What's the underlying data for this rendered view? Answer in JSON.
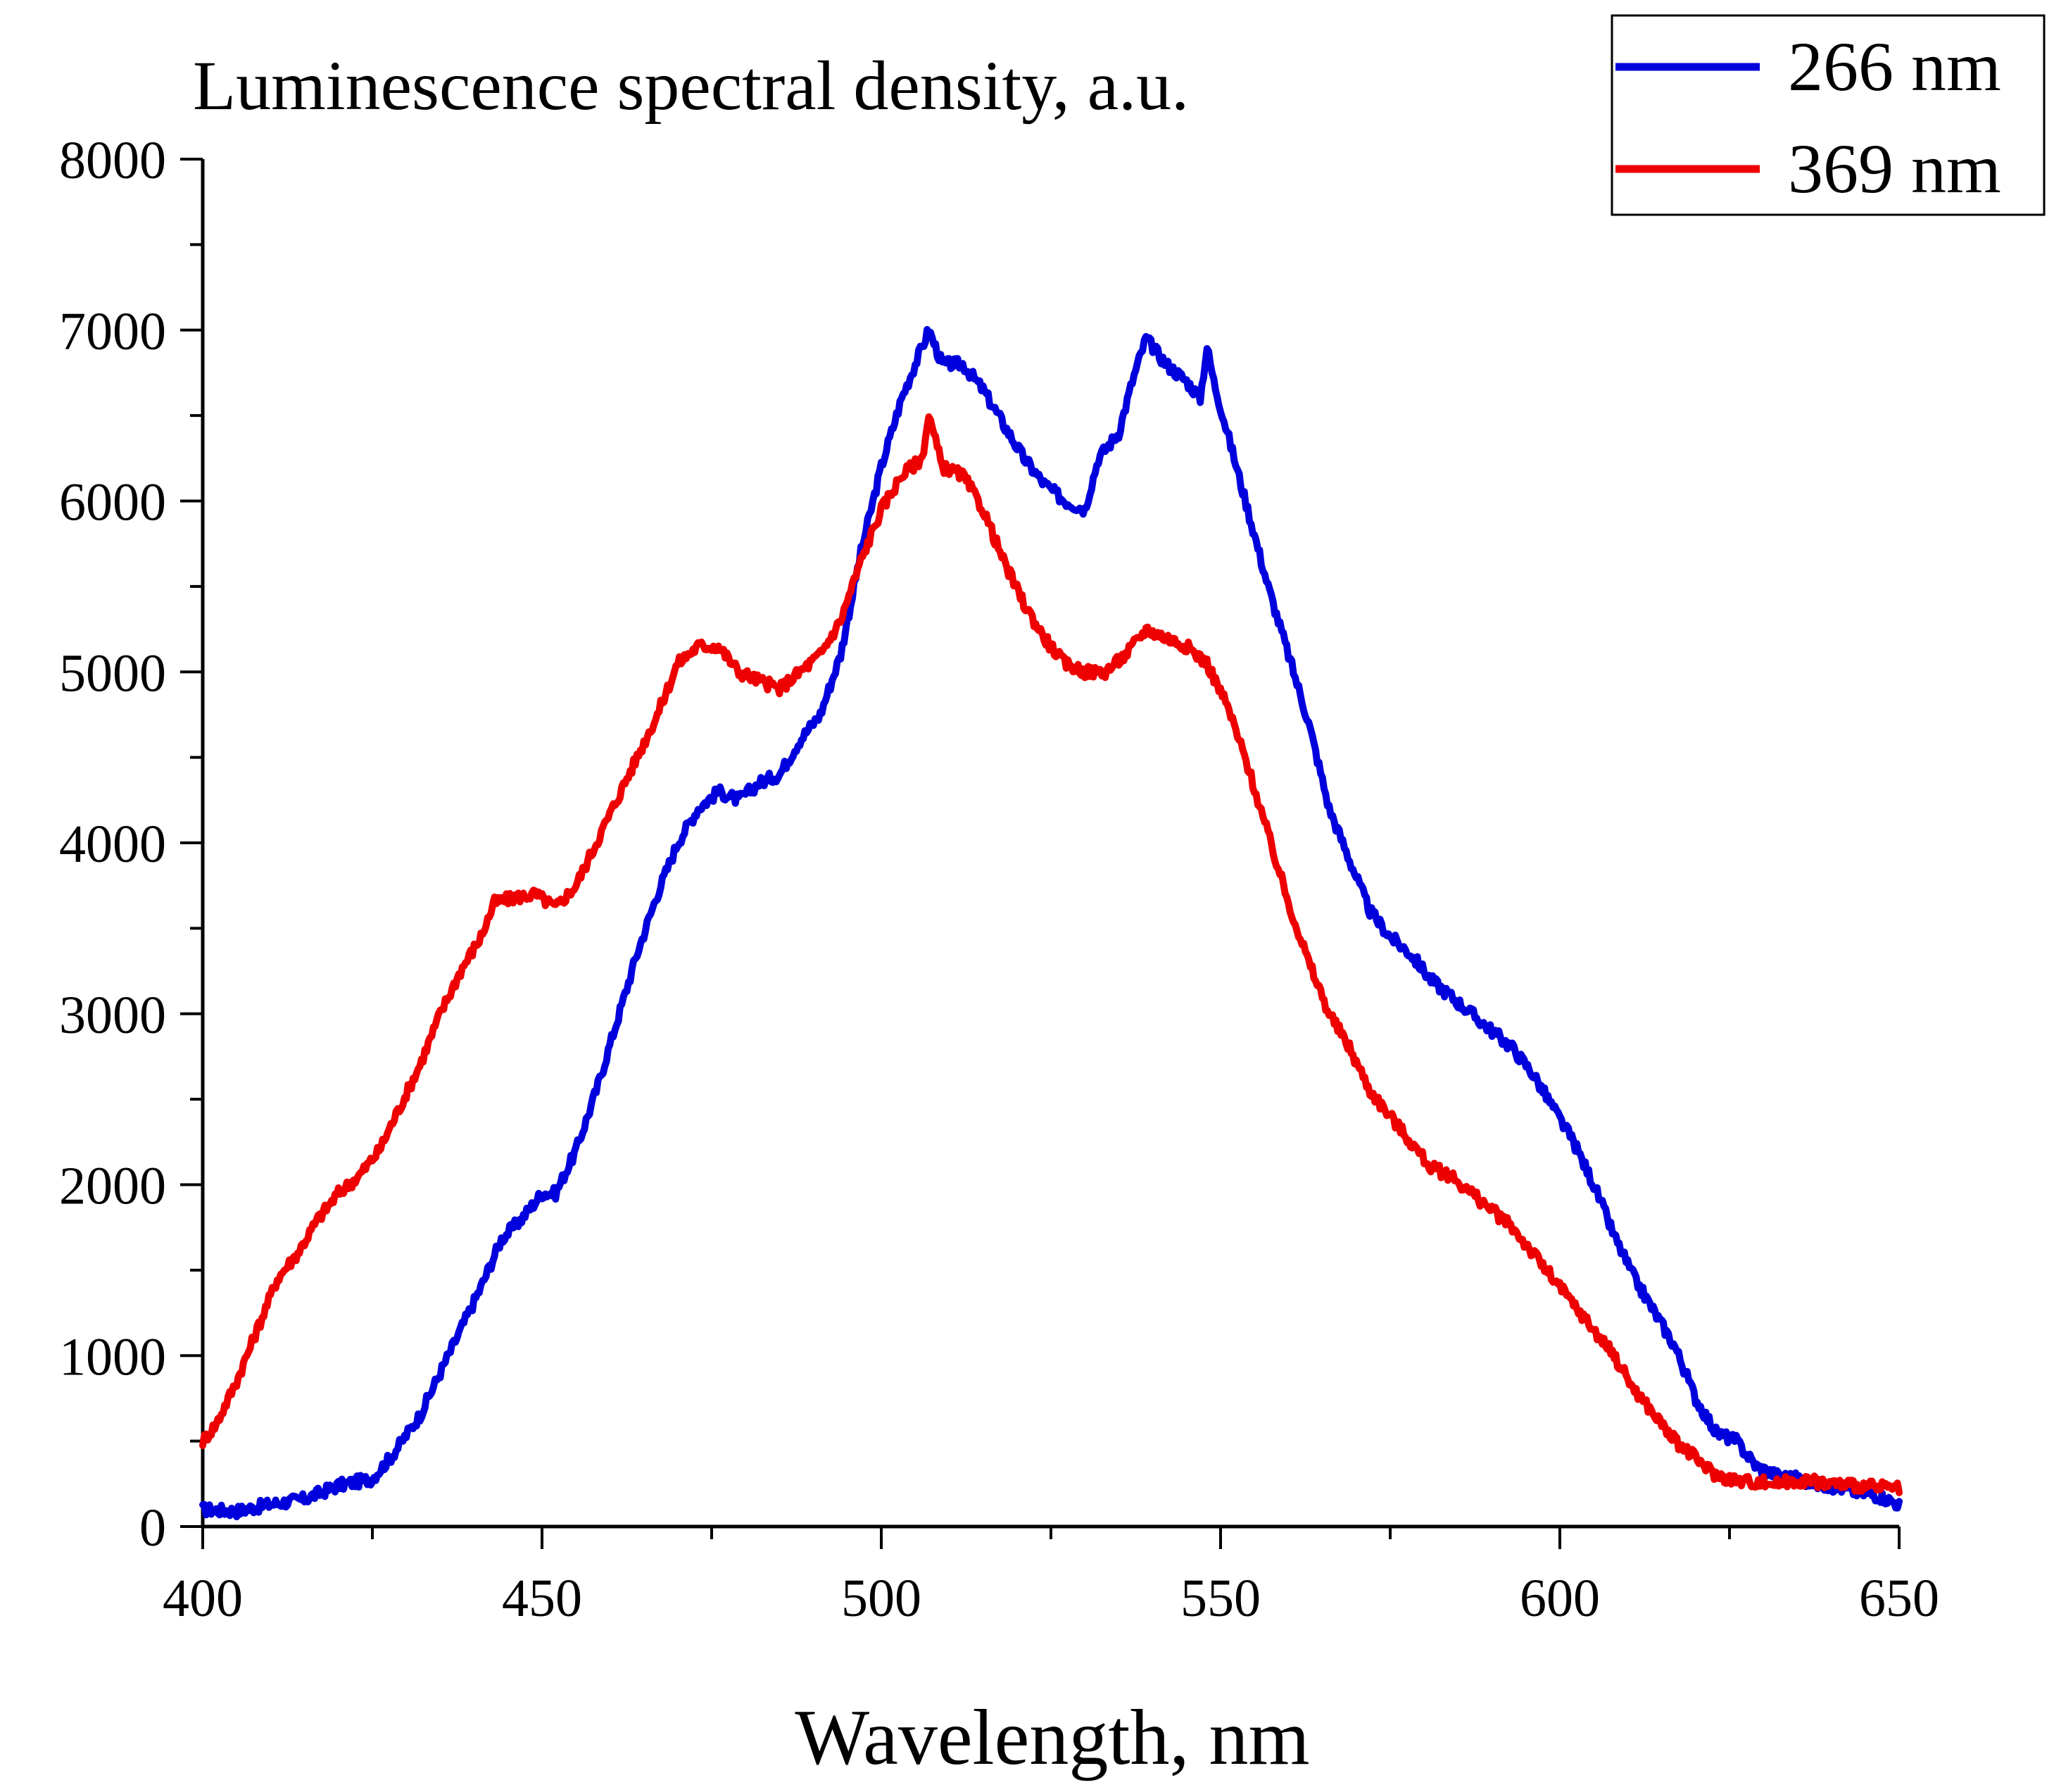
{
  "chart_data": {
    "type": "line",
    "title": "",
    "xlabel": "Wavelength, nm",
    "ylabel": "Luminescence spectral density, a.u.",
    "xlim": [
      400,
      650
    ],
    "ylim": [
      0,
      8000
    ],
    "x_ticks": [
      400,
      450,
      500,
      550,
      600,
      650
    ],
    "y_ticks": [
      0,
      1000,
      2000,
      3000,
      4000,
      5000,
      6000,
      7000,
      8000
    ],
    "x_minor_step": 25,
    "y_minor_step": 500,
    "grid": false,
    "legend_position": "top-right",
    "series": [
      {
        "name": "266 nm",
        "color": "#0000dd",
        "points": [
          [
            400,
            100
          ],
          [
            405,
            90
          ],
          [
            410,
            130
          ],
          [
            415,
            160
          ],
          [
            420,
            240
          ],
          [
            425,
            280
          ],
          [
            428,
            420
          ],
          [
            432,
            650
          ],
          [
            435,
            900
          ],
          [
            438,
            1150
          ],
          [
            441,
            1400
          ],
          [
            444,
            1680
          ],
          [
            447,
            1800
          ],
          [
            450,
            1950
          ],
          [
            452,
            1950
          ],
          [
            455,
            2200
          ],
          [
            458,
            2550
          ],
          [
            461,
            2950
          ],
          [
            464,
            3350
          ],
          [
            467,
            3700
          ],
          [
            470,
            4000
          ],
          [
            473,
            4200
          ],
          [
            476,
            4300
          ],
          [
            479,
            4250
          ],
          [
            482,
            4350
          ],
          [
            485,
            4400
          ],
          [
            488,
            4600
          ],
          [
            491,
            4750
          ],
          [
            494,
            5100
          ],
          [
            497,
            5700
          ],
          [
            500,
            6200
          ],
          [
            503,
            6600
          ],
          [
            506,
            6900
          ],
          [
            507,
            7000
          ],
          [
            509,
            6800
          ],
          [
            512,
            6800
          ],
          [
            515,
            6650
          ],
          [
            518,
            6450
          ],
          [
            521,
            6250
          ],
          [
            524,
            6100
          ],
          [
            527,
            6000
          ],
          [
            530,
            5950
          ],
          [
            532,
            6250
          ],
          [
            535,
            6400
          ],
          [
            537,
            6700
          ],
          [
            539,
            6950
          ],
          [
            542,
            6800
          ],
          [
            545,
            6700
          ],
          [
            547,
            6600
          ],
          [
            548,
            6900
          ],
          [
            549,
            6700
          ],
          [
            551,
            6400
          ],
          [
            554,
            5950
          ],
          [
            557,
            5500
          ],
          [
            560,
            5100
          ],
          [
            563,
            4700
          ],
          [
            566,
            4200
          ],
          [
            569,
            3900
          ],
          [
            572,
            3600
          ],
          [
            575,
            3450
          ],
          [
            578,
            3350
          ],
          [
            581,
            3200
          ],
          [
            584,
            3100
          ],
          [
            587,
            3000
          ],
          [
            590,
            2900
          ],
          [
            593,
            2800
          ],
          [
            596,
            2650
          ],
          [
            599,
            2450
          ],
          [
            602,
            2250
          ],
          [
            605,
            2000
          ],
          [
            608,
            1700
          ],
          [
            611,
            1450
          ],
          [
            614,
            1250
          ],
          [
            617,
            1050
          ],
          [
            620,
            750
          ],
          [
            623,
            550
          ],
          [
            626,
            500
          ],
          [
            629,
            350
          ],
          [
            632,
            300
          ],
          [
            635,
            280
          ],
          [
            638,
            250
          ],
          [
            641,
            230
          ],
          [
            644,
            200
          ],
          [
            647,
            180
          ],
          [
            650,
            130
          ]
        ]
      },
      {
        "name": "369 nm",
        "color": "#ee0000",
        "points": [
          [
            400,
            500
          ],
          [
            402,
            600
          ],
          [
            405,
            850
          ],
          [
            408,
            1150
          ],
          [
            411,
            1450
          ],
          [
            414,
            1600
          ],
          [
            417,
            1800
          ],
          [
            420,
            1950
          ],
          [
            423,
            2050
          ],
          [
            426,
            2200
          ],
          [
            429,
            2450
          ],
          [
            432,
            2700
          ],
          [
            435,
            3000
          ],
          [
            438,
            3250
          ],
          [
            441,
            3450
          ],
          [
            443,
            3650
          ],
          [
            446,
            3680
          ],
          [
            449,
            3700
          ],
          [
            452,
            3620
          ],
          [
            455,
            3750
          ],
          [
            458,
            4000
          ],
          [
            461,
            4250
          ],
          [
            464,
            4500
          ],
          [
            467,
            4750
          ],
          [
            470,
            5050
          ],
          [
            473,
            5150
          ],
          [
            476,
            5150
          ],
          [
            479,
            5000
          ],
          [
            482,
            4950
          ],
          [
            485,
            4900
          ],
          [
            488,
            5000
          ],
          [
            491,
            5100
          ],
          [
            494,
            5300
          ],
          [
            497,
            5650
          ],
          [
            500,
            5950
          ],
          [
            503,
            6150
          ],
          [
            506,
            6250
          ],
          [
            507,
            6500
          ],
          [
            509,
            6200
          ],
          [
            512,
            6150
          ],
          [
            515,
            5950
          ],
          [
            518,
            5650
          ],
          [
            521,
            5400
          ],
          [
            524,
            5200
          ],
          [
            527,
            5050
          ],
          [
            530,
            5000
          ],
          [
            533,
            5000
          ],
          [
            536,
            5100
          ],
          [
            539,
            5250
          ],
          [
            542,
            5200
          ],
          [
            545,
            5150
          ],
          [
            548,
            5050
          ],
          [
            551,
            4800
          ],
          [
            554,
            4450
          ],
          [
            557,
            4050
          ],
          [
            560,
            3650
          ],
          [
            563,
            3300
          ],
          [
            566,
            3000
          ],
          [
            569,
            2800
          ],
          [
            572,
            2550
          ],
          [
            575,
            2400
          ],
          [
            578,
            2250
          ],
          [
            581,
            2100
          ],
          [
            584,
            2050
          ],
          [
            587,
            1950
          ],
          [
            590,
            1850
          ],
          [
            593,
            1750
          ],
          [
            596,
            1600
          ],
          [
            599,
            1450
          ],
          [
            602,
            1300
          ],
          [
            605,
            1150
          ],
          [
            608,
            1000
          ],
          [
            611,
            800
          ],
          [
            614,
            650
          ],
          [
            617,
            500
          ],
          [
            620,
            400
          ],
          [
            623,
            300
          ],
          [
            626,
            270
          ],
          [
            629,
            260
          ],
          [
            632,
            250
          ],
          [
            635,
            270
          ],
          [
            638,
            260
          ],
          [
            641,
            250
          ],
          [
            644,
            240
          ],
          [
            647,
            230
          ],
          [
            650,
            220
          ]
        ]
      }
    ]
  }
}
